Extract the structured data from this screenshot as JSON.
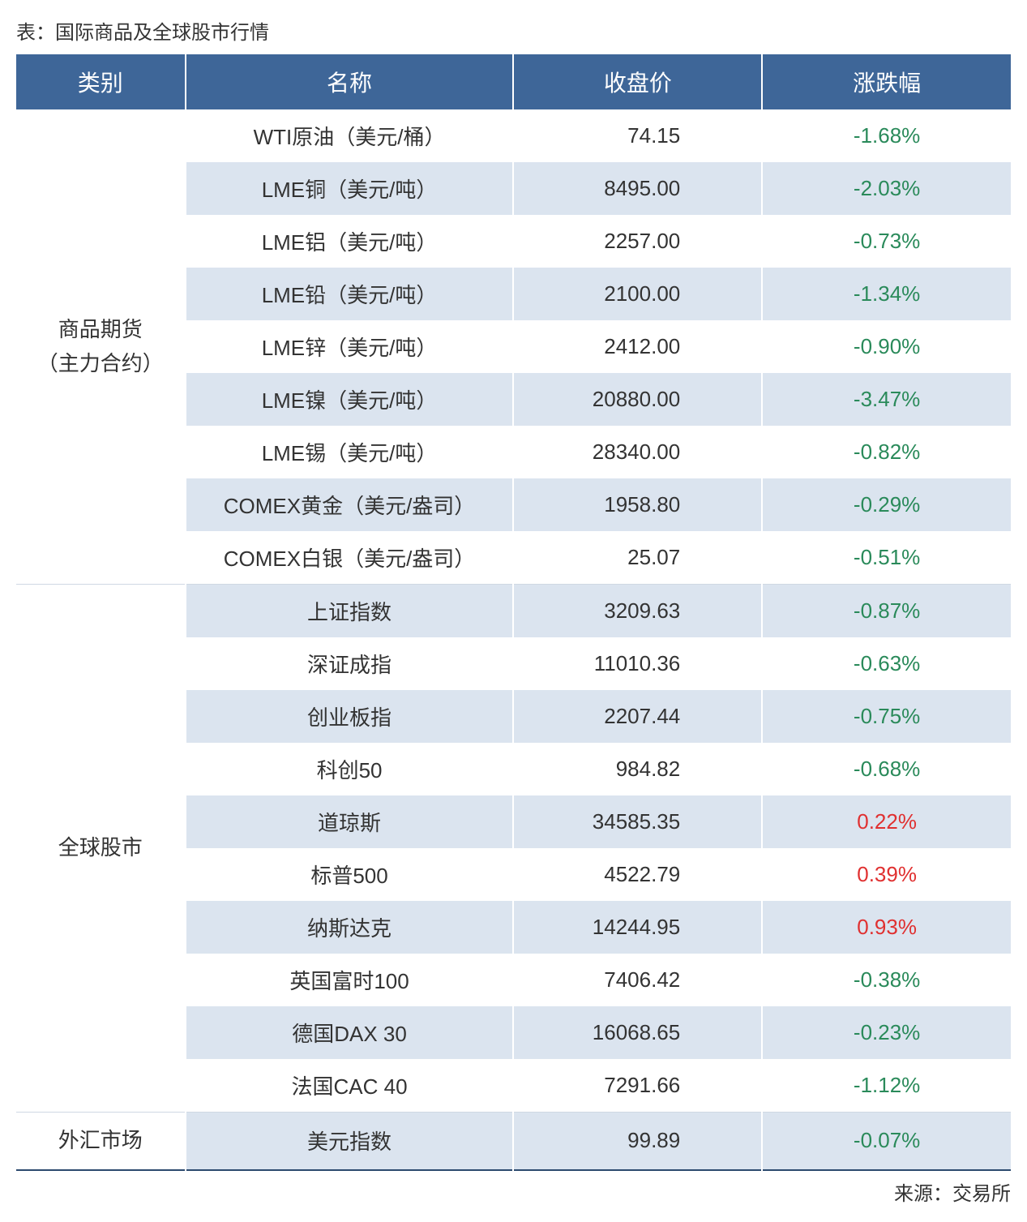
{
  "title": "表：国际商品及全球股市行情",
  "footer": "来源：交易所",
  "colors": {
    "header_bg": "#3e6698",
    "header_text": "#ffffff",
    "row_alt_bg": "#dbe4ef",
    "row_bg": "#ffffff",
    "neg_color": "#2a8a5a",
    "pos_color": "#e03030",
    "text_color": "#333333",
    "border_bottom": "#2c4a6e"
  },
  "layout": {
    "col_widths_pct": [
      17,
      33,
      25,
      25
    ],
    "font_size_header": 28,
    "font_size_cell": 26,
    "font_size_title": 24,
    "font_size_footer": 24
  },
  "columns": [
    "类别",
    "名称",
    "收盘价",
    "涨跌幅"
  ],
  "categories": [
    {
      "label": "商品期货\n（主力合约）",
      "rows": [
        {
          "name": "WTI原油（美元/桶）",
          "price": "74.15",
          "change": "-1.68%",
          "dir": "neg"
        },
        {
          "name": "LME铜（美元/吨）",
          "price": "8495.00",
          "change": "-2.03%",
          "dir": "neg"
        },
        {
          "name": "LME铝（美元/吨）",
          "price": "2257.00",
          "change": "-0.73%",
          "dir": "neg"
        },
        {
          "name": "LME铅（美元/吨）",
          "price": "2100.00",
          "change": "-1.34%",
          "dir": "neg"
        },
        {
          "name": "LME锌（美元/吨）",
          "price": "2412.00",
          "change": "-0.90%",
          "dir": "neg"
        },
        {
          "name": "LME镍（美元/吨）",
          "price": "20880.00",
          "change": "-3.47%",
          "dir": "neg"
        },
        {
          "name": "LME锡（美元/吨）",
          "price": "28340.00",
          "change": "-0.82%",
          "dir": "neg"
        },
        {
          "name": "COMEX黄金（美元/盎司）",
          "price": "1958.80",
          "change": "-0.29%",
          "dir": "neg"
        },
        {
          "name": "COMEX白银（美元/盎司）",
          "price": "25.07",
          "change": "-0.51%",
          "dir": "neg"
        }
      ]
    },
    {
      "label": "全球股市",
      "rows": [
        {
          "name": "上证指数",
          "price": "3209.63",
          "change": "-0.87%",
          "dir": "neg"
        },
        {
          "name": "深证成指",
          "price": "11010.36",
          "change": "-0.63%",
          "dir": "neg"
        },
        {
          "name": "创业板指",
          "price": "2207.44",
          "change": "-0.75%",
          "dir": "neg"
        },
        {
          "name": "科创50",
          "price": "984.82",
          "change": "-0.68%",
          "dir": "neg"
        },
        {
          "name": "道琼斯",
          "price": "34585.35",
          "change": "0.22%",
          "dir": "pos"
        },
        {
          "name": "标普500",
          "price": "4522.79",
          "change": "0.39%",
          "dir": "pos"
        },
        {
          "name": "纳斯达克",
          "price": "14244.95",
          "change": "0.93%",
          "dir": "pos"
        },
        {
          "name": "英国富时100",
          "price": "7406.42",
          "change": "-0.38%",
          "dir": "neg"
        },
        {
          "name": "德国DAX 30",
          "price": "16068.65",
          "change": "-0.23%",
          "dir": "neg"
        },
        {
          "name": "法国CAC 40",
          "price": "7291.66",
          "change": "-1.12%",
          "dir": "neg"
        }
      ]
    },
    {
      "label": "外汇市场",
      "rows": [
        {
          "name": "美元指数",
          "price": "99.89",
          "change": "-0.07%",
          "dir": "neg"
        }
      ]
    }
  ]
}
